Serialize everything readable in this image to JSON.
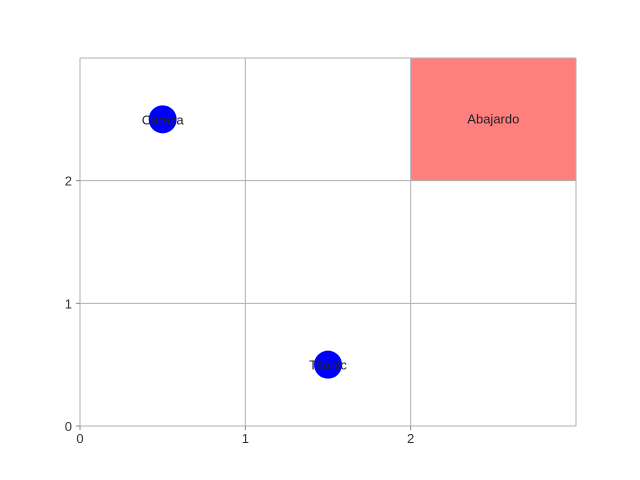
{
  "chart_data": {
    "type": "scatter",
    "title": "",
    "xlabel": "",
    "ylabel": "",
    "xlim": [
      0,
      3
    ],
    "ylim": [
      0,
      3
    ],
    "x_ticks": [
      "0",
      "1",
      "2"
    ],
    "y_ticks": [
      "0",
      "1",
      "2"
    ],
    "grid": true,
    "highlight_regions": [
      {
        "x": [
          2,
          3
        ],
        "y": [
          2,
          3
        ],
        "color": "#ff7f7f",
        "label": "Abajardo"
      }
    ],
    "points": [
      {
        "x": 0.5,
        "y": 2.5,
        "label": "Caraza",
        "color": "#0000ff"
      },
      {
        "x": 1.5,
        "y": 0.5,
        "label": "Titanic",
        "color": "#0000ff"
      }
    ]
  }
}
